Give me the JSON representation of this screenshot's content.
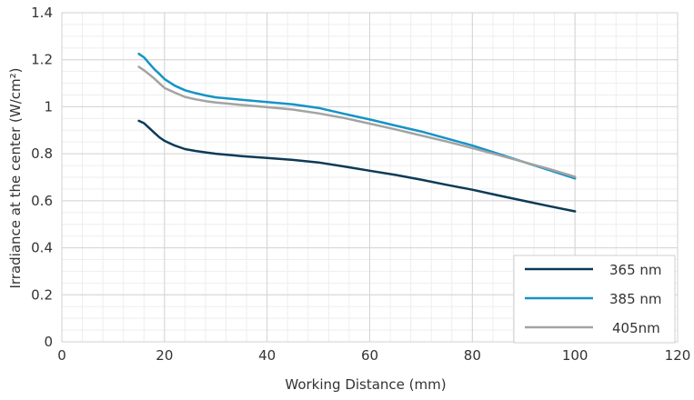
{
  "chart_data": {
    "type": "line",
    "xlabel": "Working Distance (mm)",
    "ylabel": "Irradiance at the center (W/cm²)",
    "xlim": [
      0,
      120
    ],
    "ylim": [
      0,
      1.4
    ],
    "xticks": [
      0,
      20,
      40,
      60,
      80,
      100,
      120
    ],
    "yticks": [
      0,
      0.2,
      0.4,
      0.6,
      0.8,
      1,
      1.2,
      1.4
    ],
    "xtick_labels": [
      "0",
      "20",
      "40",
      "60",
      "80",
      "100",
      "120"
    ],
    "ytick_labels": [
      "0",
      "0.2",
      "0.4",
      "0.6",
      "0.8",
      "1",
      "1.2",
      "1.4"
    ],
    "grid": true,
    "legend_position": "bottom-right",
    "series": [
      {
        "name": "365 nm",
        "color": "#0d3a57",
        "x": [
          15,
          16,
          17,
          18,
          19,
          20,
          22,
          24,
          26,
          28,
          30,
          35,
          40,
          45,
          50,
          55,
          60,
          65,
          70,
          75,
          80,
          85,
          90,
          95,
          100
        ],
        "y": [
          0.94,
          0.93,
          0.91,
          0.89,
          0.87,
          0.855,
          0.835,
          0.82,
          0.812,
          0.806,
          0.8,
          0.79,
          0.782,
          0.774,
          0.763,
          0.746,
          0.728,
          0.71,
          0.69,
          0.668,
          0.647,
          0.623,
          0.6,
          0.577,
          0.555
        ]
      },
      {
        "name": "385 nm",
        "color": "#1593c7",
        "x": [
          15,
          16,
          17,
          18,
          19,
          20,
          22,
          24,
          26,
          28,
          30,
          35,
          40,
          45,
          50,
          55,
          60,
          65,
          70,
          75,
          80,
          85,
          90,
          95,
          100
        ],
        "y": [
          1.225,
          1.21,
          1.185,
          1.16,
          1.14,
          1.118,
          1.09,
          1.07,
          1.058,
          1.048,
          1.04,
          1.03,
          1.02,
          1.01,
          0.995,
          0.97,
          0.946,
          0.92,
          0.895,
          0.865,
          0.835,
          0.8,
          0.765,
          0.73,
          0.695
        ]
      },
      {
        "name": "405nm",
        "color": "#a3a3a3",
        "x": [
          15,
          16,
          17,
          18,
          19,
          20,
          22,
          24,
          26,
          28,
          30,
          35,
          40,
          45,
          50,
          55,
          60,
          65,
          70,
          75,
          80,
          85,
          90,
          95,
          100
        ],
        "y": [
          1.17,
          1.155,
          1.138,
          1.12,
          1.1,
          1.08,
          1.06,
          1.042,
          1.032,
          1.024,
          1.018,
          1.008,
          0.998,
          0.988,
          0.972,
          0.952,
          0.928,
          0.904,
          0.878,
          0.852,
          0.824,
          0.795,
          0.765,
          0.735,
          0.702
        ]
      }
    ]
  }
}
